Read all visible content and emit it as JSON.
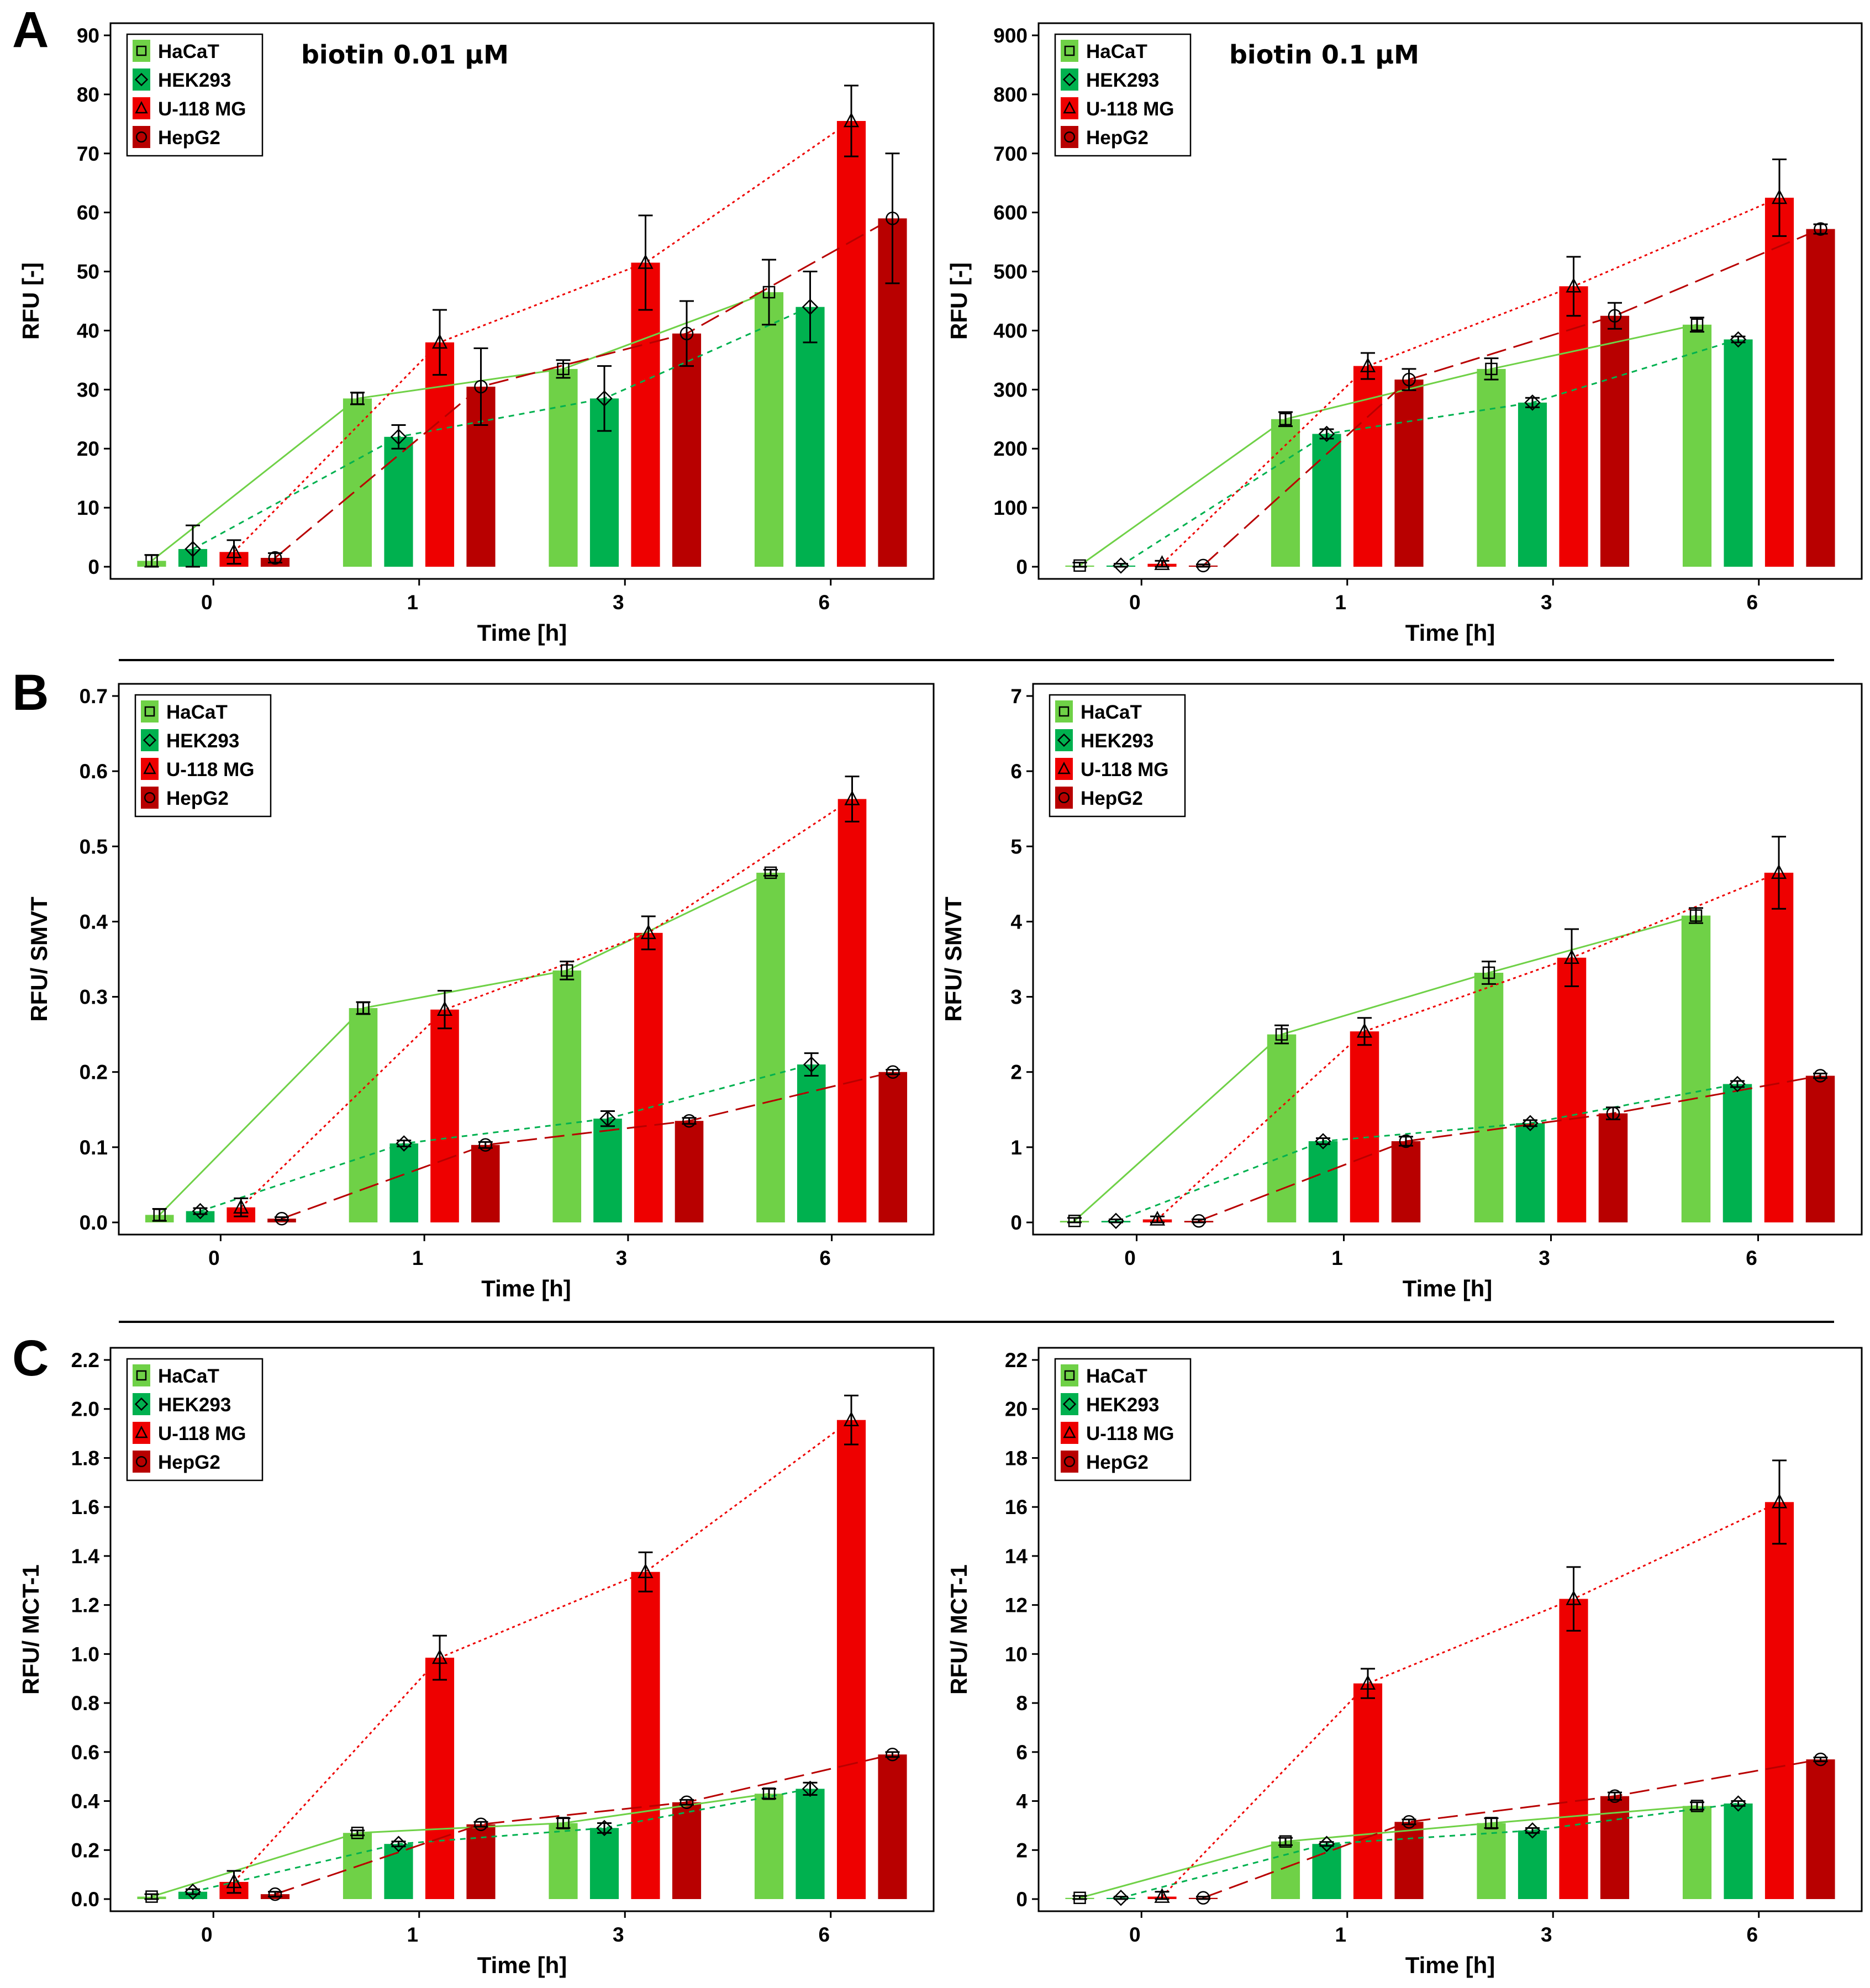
{
  "panel_letters": [
    "A",
    "B",
    "C"
  ],
  "colors": {
    "HaCaT": "#6fd147",
    "HEK293": "#00b14f",
    "U-118 MG": "#ee0000",
    "HepG2": "#b80000"
  },
  "chart_data": [
    {
      "type": "bar",
      "panel": "A",
      "title": "",
      "annotation": "biotin 0.01 µM",
      "xlabel": "Time [h]",
      "ylabel": "RFU [-]",
      "categories": [
        "0",
        "1",
        "3",
        "6"
      ],
      "ylim": [
        0,
        90
      ],
      "yticks": [
        0,
        10,
        20,
        30,
        40,
        50,
        60,
        70,
        80,
        90
      ],
      "decimals": 0,
      "grid": false,
      "legend": "top-left",
      "series": [
        {
          "name": "HaCaT",
          "values": [
            1,
            28.5,
            33.5,
            46.5
          ],
          "errors": [
            1,
            1,
            1.5,
            5.5
          ]
        },
        {
          "name": "HEK293",
          "values": [
            3,
            22,
            28.5,
            44
          ],
          "errors": [
            4,
            2,
            5.5,
            6
          ]
        },
        {
          "name": "U-118 MG",
          "values": [
            2.5,
            38,
            51.5,
            75.5
          ],
          "errors": [
            2,
            5.5,
            8,
            6
          ]
        },
        {
          "name": "HepG2",
          "values": [
            1.5,
            30.5,
            39.5,
            59
          ],
          "errors": [
            0.8,
            6.5,
            5.5,
            11
          ]
        }
      ]
    },
    {
      "type": "bar",
      "panel": "A",
      "title": "",
      "annotation": "biotin 0.1 µM",
      "xlabel": "Time [h]",
      "ylabel": "RFU [-]",
      "categories": [
        "0",
        "1",
        "3",
        "6"
      ],
      "ylim": [
        0,
        900
      ],
      "yticks": [
        0,
        100,
        200,
        300,
        400,
        500,
        600,
        700,
        800,
        900
      ],
      "decimals": 0,
      "grid": false,
      "legend": "top-left",
      "series": [
        {
          "name": "HaCaT",
          "values": [
            2,
            250,
            335,
            410
          ],
          "errors": [
            5,
            12,
            18,
            12
          ]
        },
        {
          "name": "HEK293",
          "values": [
            2,
            225,
            278,
            385
          ],
          "errors": [
            3,
            8,
            8,
            5
          ]
        },
        {
          "name": "U-118 MG",
          "values": [
            5,
            340,
            475,
            625
          ],
          "errors": [
            5,
            22,
            50,
            65
          ]
        },
        {
          "name": "HepG2",
          "values": [
            2,
            317,
            425,
            572
          ],
          "errors": [
            2,
            18,
            22,
            8
          ]
        }
      ]
    },
    {
      "type": "bar",
      "panel": "B",
      "title": "",
      "annotation": "",
      "xlabel": "Time [h]",
      "ylabel": "RFU/ SMVT",
      "categories": [
        "0",
        "1",
        "3",
        "6"
      ],
      "ylim": [
        0,
        0.7
      ],
      "yticks": [
        0.0,
        0.1,
        0.2,
        0.3,
        0.4,
        0.5,
        0.6,
        0.7
      ],
      "decimals": 1,
      "grid": false,
      "legend": "top-left",
      "series": [
        {
          "name": "HaCaT",
          "values": [
            0.01,
            0.285,
            0.335,
            0.465
          ],
          "errors": [
            0.008,
            0.008,
            0.012,
            0.004
          ]
        },
        {
          "name": "HEK293",
          "values": [
            0.015,
            0.105,
            0.138,
            0.21
          ],
          "errors": [
            0.004,
            0.004,
            0.01,
            0.015
          ]
        },
        {
          "name": "U-118 MG",
          "values": [
            0.02,
            0.283,
            0.385,
            0.563
          ],
          "errors": [
            0.012,
            0.025,
            0.022,
            0.03
          ]
        },
        {
          "name": "HepG2",
          "values": [
            0.005,
            0.103,
            0.135,
            0.2
          ],
          "errors": [
            0.002,
            0.004,
            0.004,
            0.003
          ]
        }
      ]
    },
    {
      "type": "bar",
      "panel": "B",
      "title": "",
      "annotation": "",
      "xlabel": "Time [h]",
      "ylabel": "RFU/ SMVT",
      "categories": [
        "0",
        "1",
        "3",
        "6"
      ],
      "ylim": [
        0,
        7
      ],
      "yticks": [
        0,
        1,
        2,
        3,
        4,
        5,
        6,
        7
      ],
      "decimals": 0,
      "grid": false,
      "legend": "top-left",
      "series": [
        {
          "name": "HaCaT",
          "values": [
            0.02,
            2.5,
            3.32,
            4.08
          ],
          "errors": [
            0.04,
            0.12,
            0.15,
            0.1
          ]
        },
        {
          "name": "HEK293",
          "values": [
            0.02,
            1.08,
            1.32,
            1.84
          ],
          "errors": [
            0.02,
            0.04,
            0.04,
            0.04
          ]
        },
        {
          "name": "U-118 MG",
          "values": [
            0.04,
            2.54,
            3.52,
            4.65
          ],
          "errors": [
            0.04,
            0.18,
            0.38,
            0.48
          ]
        },
        {
          "name": "HepG2",
          "values": [
            0.02,
            1.08,
            1.45,
            1.95
          ],
          "errors": [
            0.02,
            0.06,
            0.08,
            0.03
          ]
        }
      ]
    },
    {
      "type": "bar",
      "panel": "C",
      "title": "",
      "annotation": "",
      "xlabel": "Time [h]",
      "ylabel": "RFU/ MCT-1",
      "categories": [
        "0",
        "1",
        "3",
        "6"
      ],
      "ylim": [
        0,
        2.2
      ],
      "yticks": [
        0.0,
        0.2,
        0.4,
        0.6,
        0.8,
        1.0,
        1.2,
        1.4,
        1.6,
        1.8,
        2.0,
        2.2
      ],
      "decimals": 1,
      "grid": false,
      "legend": "top-left",
      "series": [
        {
          "name": "HaCaT",
          "values": [
            0.01,
            0.27,
            0.31,
            0.43
          ],
          "errors": [
            0.01,
            0.01,
            0.02,
            0.02
          ]
        },
        {
          "name": "HEK293",
          "values": [
            0.03,
            0.225,
            0.29,
            0.45
          ],
          "errors": [
            0.01,
            0.01,
            0.02,
            0.025
          ]
        },
        {
          "name": "U-118 MG",
          "values": [
            0.07,
            0.985,
            1.335,
            1.955
          ],
          "errors": [
            0.045,
            0.09,
            0.08,
            0.1
          ]
        },
        {
          "name": "HepG2",
          "values": [
            0.02,
            0.305,
            0.395,
            0.59
          ],
          "errors": [
            0.01,
            0.01,
            0.01,
            0.01
          ]
        }
      ]
    },
    {
      "type": "bar",
      "panel": "C",
      "title": "",
      "annotation": "",
      "xlabel": "Time [h]",
      "ylabel": "RFU/ MCT-1",
      "categories": [
        "0",
        "1",
        "3",
        "6"
      ],
      "ylim": [
        0,
        22
      ],
      "yticks": [
        0,
        2,
        4,
        6,
        8,
        10,
        12,
        14,
        16,
        18,
        20,
        22
      ],
      "decimals": 0,
      "grid": false,
      "legend": "top-left",
      "series": [
        {
          "name": "HaCaT",
          "values": [
            0.05,
            2.35,
            3.1,
            3.8
          ],
          "errors": [
            0.08,
            0.15,
            0.2,
            0.15
          ]
        },
        {
          "name": "HEK293",
          "values": [
            0.05,
            2.25,
            2.8,
            3.9
          ],
          "errors": [
            0.05,
            0.08,
            0.1,
            0.1
          ]
        },
        {
          "name": "U-118 MG",
          "values": [
            0.1,
            8.8,
            12.25,
            16.2
          ],
          "errors": [
            0.2,
            0.6,
            1.3,
            1.7
          ]
        },
        {
          "name": "HepG2",
          "values": [
            0.05,
            3.15,
            4.2,
            5.7
          ],
          "errors": [
            0.05,
            0.1,
            0.15,
            0.08
          ]
        }
      ]
    }
  ]
}
